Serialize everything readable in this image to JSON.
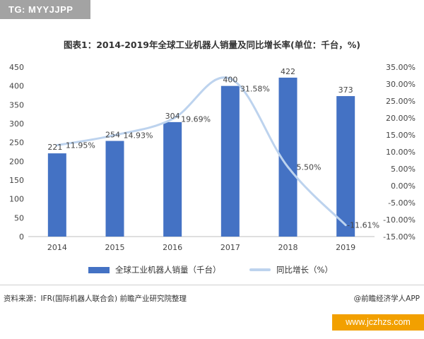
{
  "watermark": {
    "tag": "TG: MYYJJPP",
    "site_badge": "www.jczhzs.com"
  },
  "chart_data": {
    "type": "bar",
    "title": "图表1：2014-2019年全球工业机器人销量及同比增长率(单位：千台，%)",
    "categories": [
      "2014",
      "2015",
      "2016",
      "2017",
      "2018",
      "2019"
    ],
    "series": [
      {
        "name": "全球工业机器人销量（千台）",
        "type": "bar",
        "axis": "left",
        "color": "#4472c4",
        "values": [
          221,
          254,
          304,
          400,
          422,
          373
        ],
        "labels": [
          "221",
          "254",
          "304",
          "400",
          "422",
          "373"
        ]
      },
      {
        "name": "同比增长（%）",
        "type": "line",
        "axis": "right",
        "color": "#bdd3ee",
        "values": [
          11.95,
          14.93,
          19.69,
          31.58,
          5.5,
          -11.61
        ],
        "labels": [
          "11.95%",
          "14.93%",
          "19.69%",
          "31.58%",
          "5.50%",
          "-11.61%"
        ]
      }
    ],
    "y_left": {
      "min": 0,
      "max": 450,
      "step": 50,
      "ticks": [
        "0",
        "50",
        "100",
        "150",
        "200",
        "250",
        "300",
        "350",
        "400",
        "450"
      ]
    },
    "y_right": {
      "min": -15,
      "max": 35,
      "step": 5,
      "ticks": [
        "-15.00%",
        "-10.00%",
        "-5.00%",
        "0.00%",
        "5.00%",
        "10.00%",
        "15.00%",
        "20.00%",
        "25.00%",
        "30.00%",
        "35.00%"
      ]
    },
    "grid": false,
    "legend": "bottom"
  },
  "footer": {
    "source": "资料来源：IFR(国际机器人联合会) 前瞻产业研究院整理",
    "credit": "@前瞻经济学人APP"
  }
}
